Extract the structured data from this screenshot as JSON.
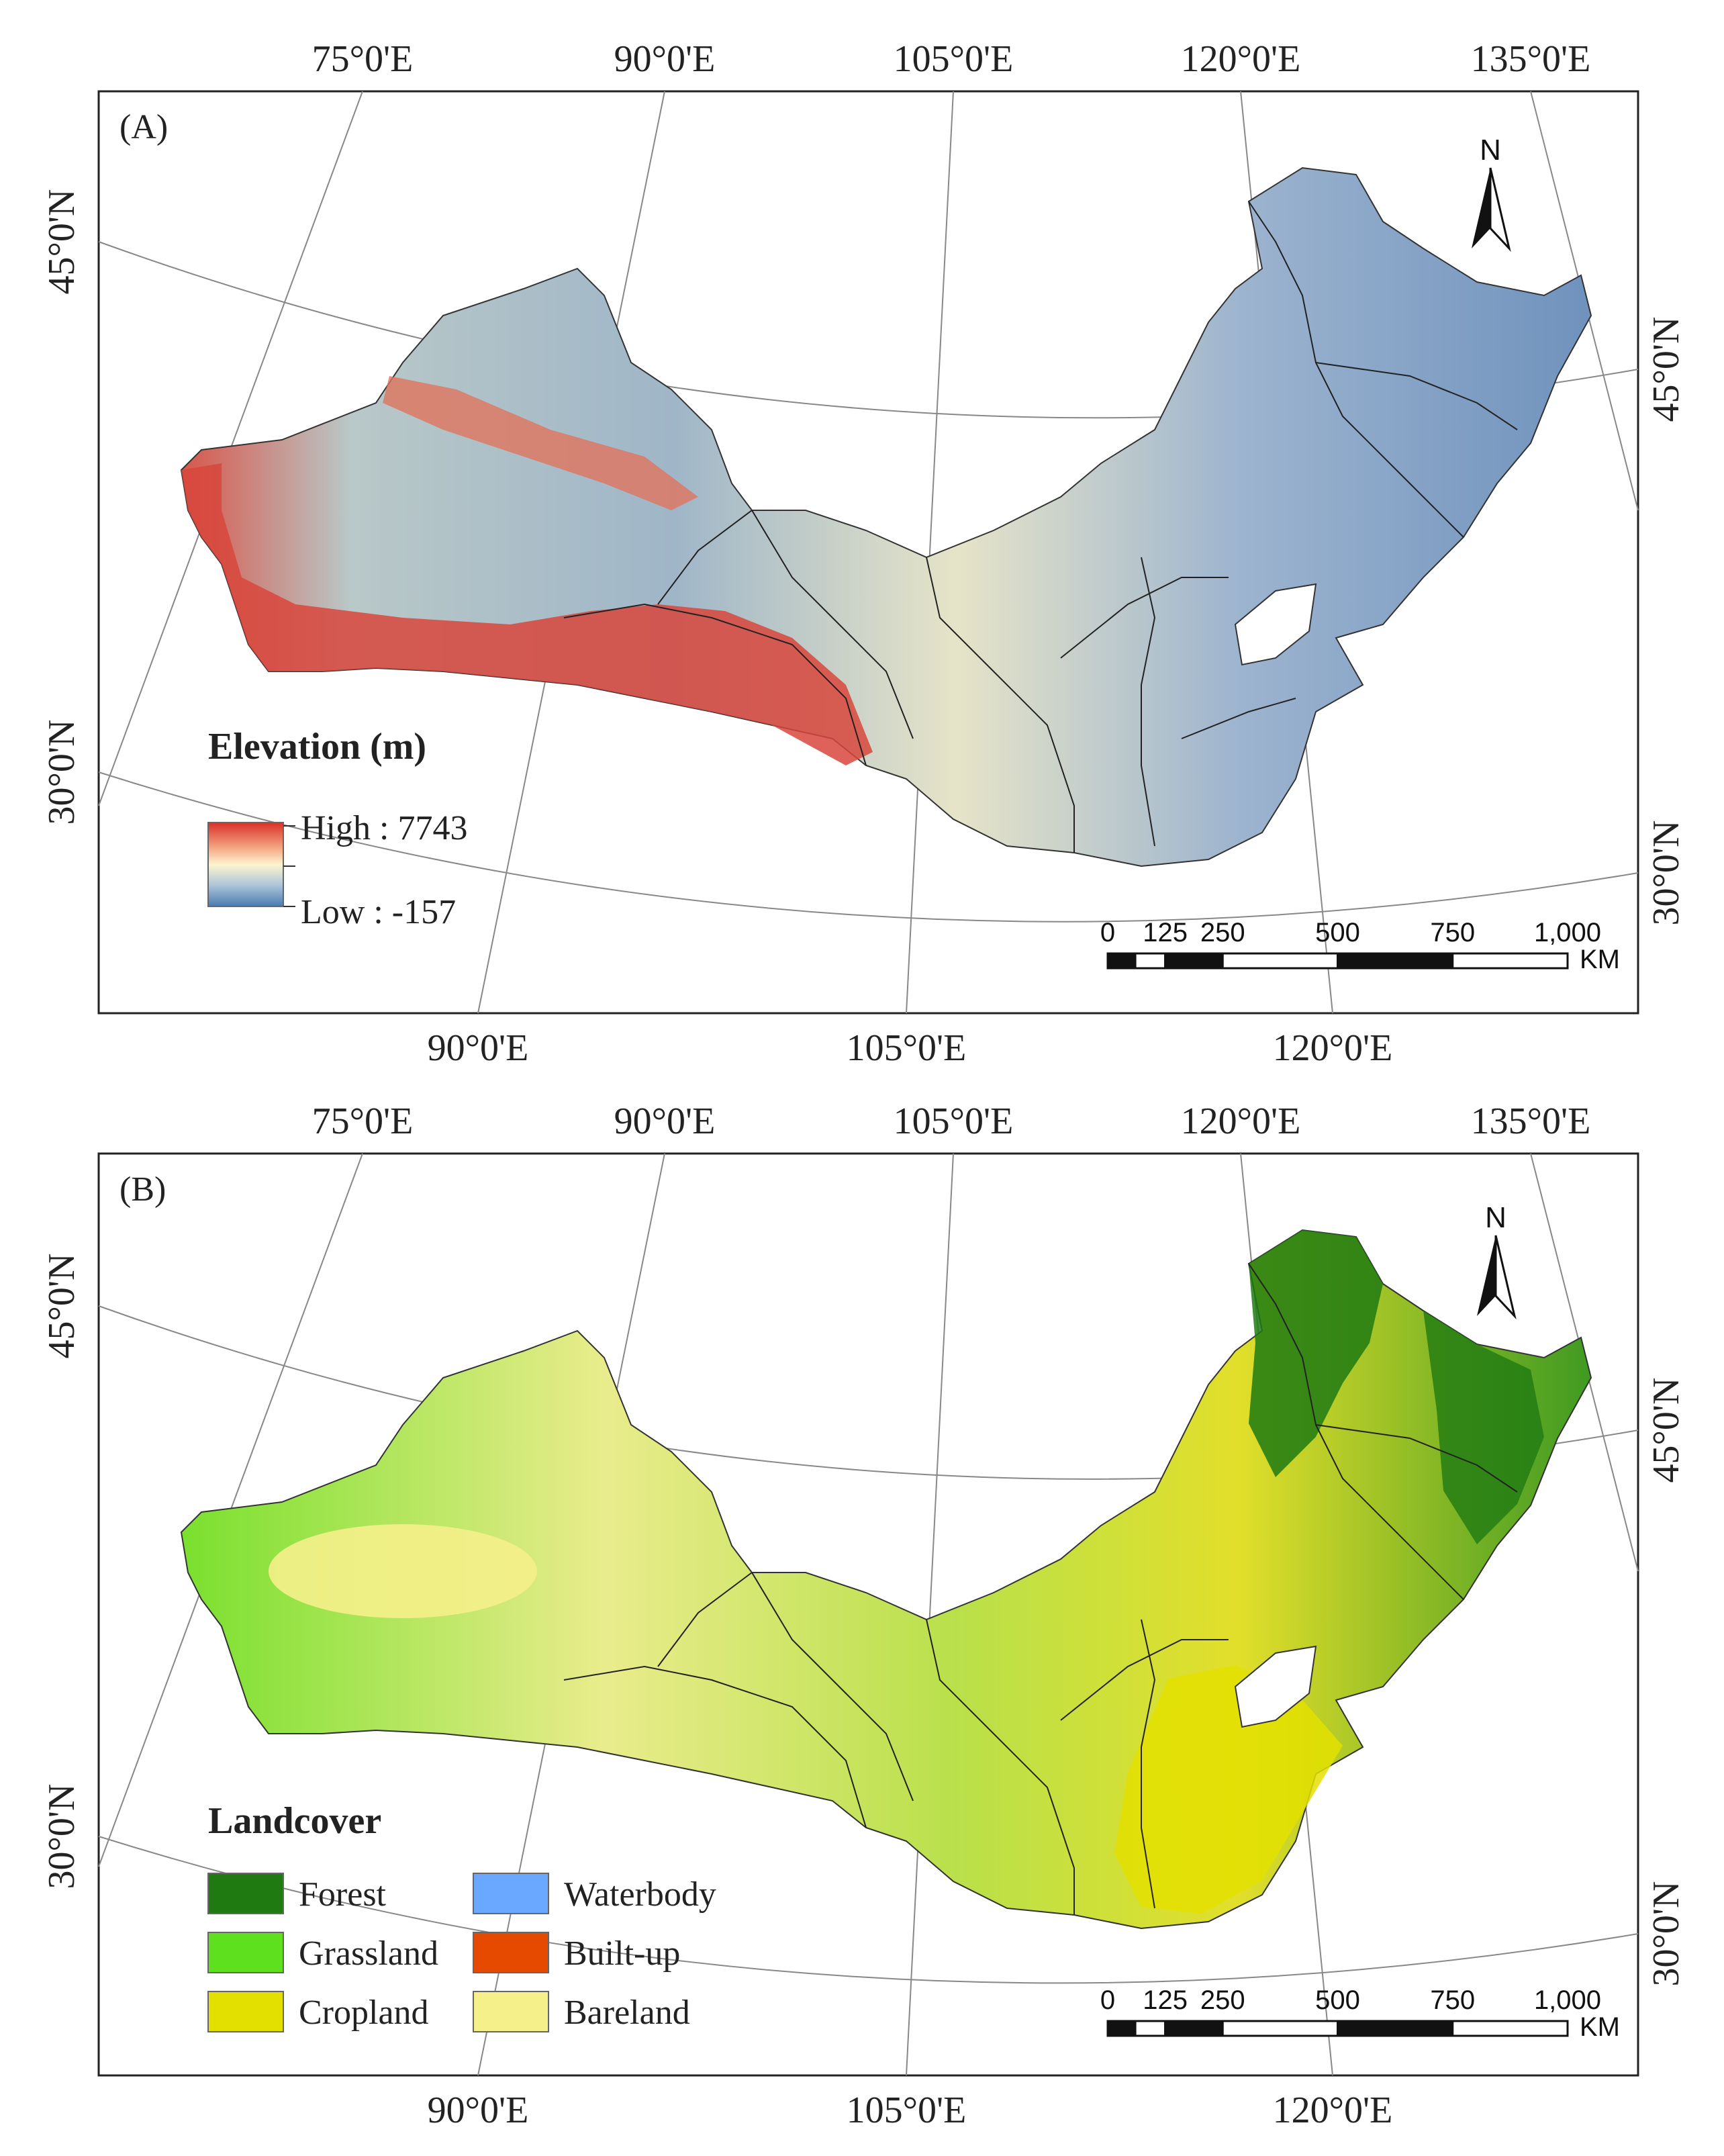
{
  "panels": [
    {
      "tag": "(A)",
      "top_ticks": [
        "75°0'E",
        "90°0'E",
        "105°0'E",
        "120°0'E",
        "135°0'E"
      ],
      "bottom_ticks": [
        "90°0'E",
        "105°0'E",
        "120°0'E"
      ],
      "left_ticks": [
        "45°0'N",
        "30°0'N"
      ],
      "right_ticks": [
        "45°0'N",
        "30°0'N"
      ],
      "north_label": "N",
      "scale": {
        "labels": [
          "0",
          "125",
          "250",
          "500",
          "750",
          "1,000"
        ],
        "unit": "KM"
      },
      "legend": {
        "title": "Elevation (m)",
        "high": "High : 7743",
        "low": "Low : -157",
        "colors": [
          "#d73027",
          "#f4a582",
          "#fdf5d0",
          "#abc4d8",
          "#4a79b0"
        ]
      }
    },
    {
      "tag": "(B)",
      "top_ticks": [
        "75°0'E",
        "90°0'E",
        "105°0'E",
        "120°0'E",
        "135°0'E"
      ],
      "bottom_ticks": [
        "90°0'E",
        "105°0'E",
        "120°0'E"
      ],
      "left_ticks": [
        "45°0'N",
        "30°0'N"
      ],
      "right_ticks": [
        "45°0'N",
        "30°0'N"
      ],
      "north_label": "N",
      "scale": {
        "labels": [
          "0",
          "125",
          "250",
          "500",
          "750",
          "1,000"
        ],
        "unit": "KM"
      },
      "legend": {
        "title": "Landcover",
        "classes": [
          {
            "name": "Forest",
            "color": "#1f7a12"
          },
          {
            "name": "Grassland",
            "color": "#5fe01f"
          },
          {
            "name": "Cropland",
            "color": "#e3e000"
          },
          {
            "name": "Waterbody",
            "color": "#6aa8ff"
          },
          {
            "name": "Built-up",
            "color": "#e64a00"
          },
          {
            "name": "Bareland",
            "color": "#f5f08a"
          }
        ]
      }
    }
  ]
}
